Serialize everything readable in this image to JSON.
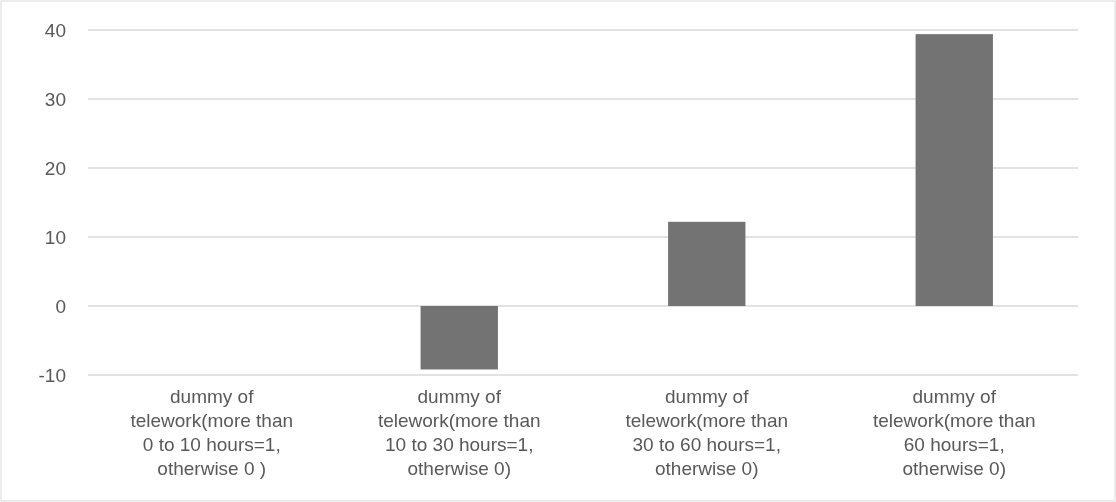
{
  "chart_data": {
    "type": "bar",
    "categories": [
      "dummy of telework(more than 0 to 10 hours=1, otherwise 0 )",
      "dummy of telework(more than 10 to 30 hours=1, otherwise 0)",
      "dummy of telework(more than 30 to 60 hours=1, otherwise 0)",
      "dummy of telework(more than 60 hours=1, otherwise 0)"
    ],
    "values": [
      0,
      -9.2,
      12.2,
      39.4
    ],
    "color": "#737373",
    "ylim": [
      -10,
      40
    ],
    "yticks": [
      -10,
      0,
      10,
      20,
      30,
      40
    ],
    "grid": "y"
  }
}
